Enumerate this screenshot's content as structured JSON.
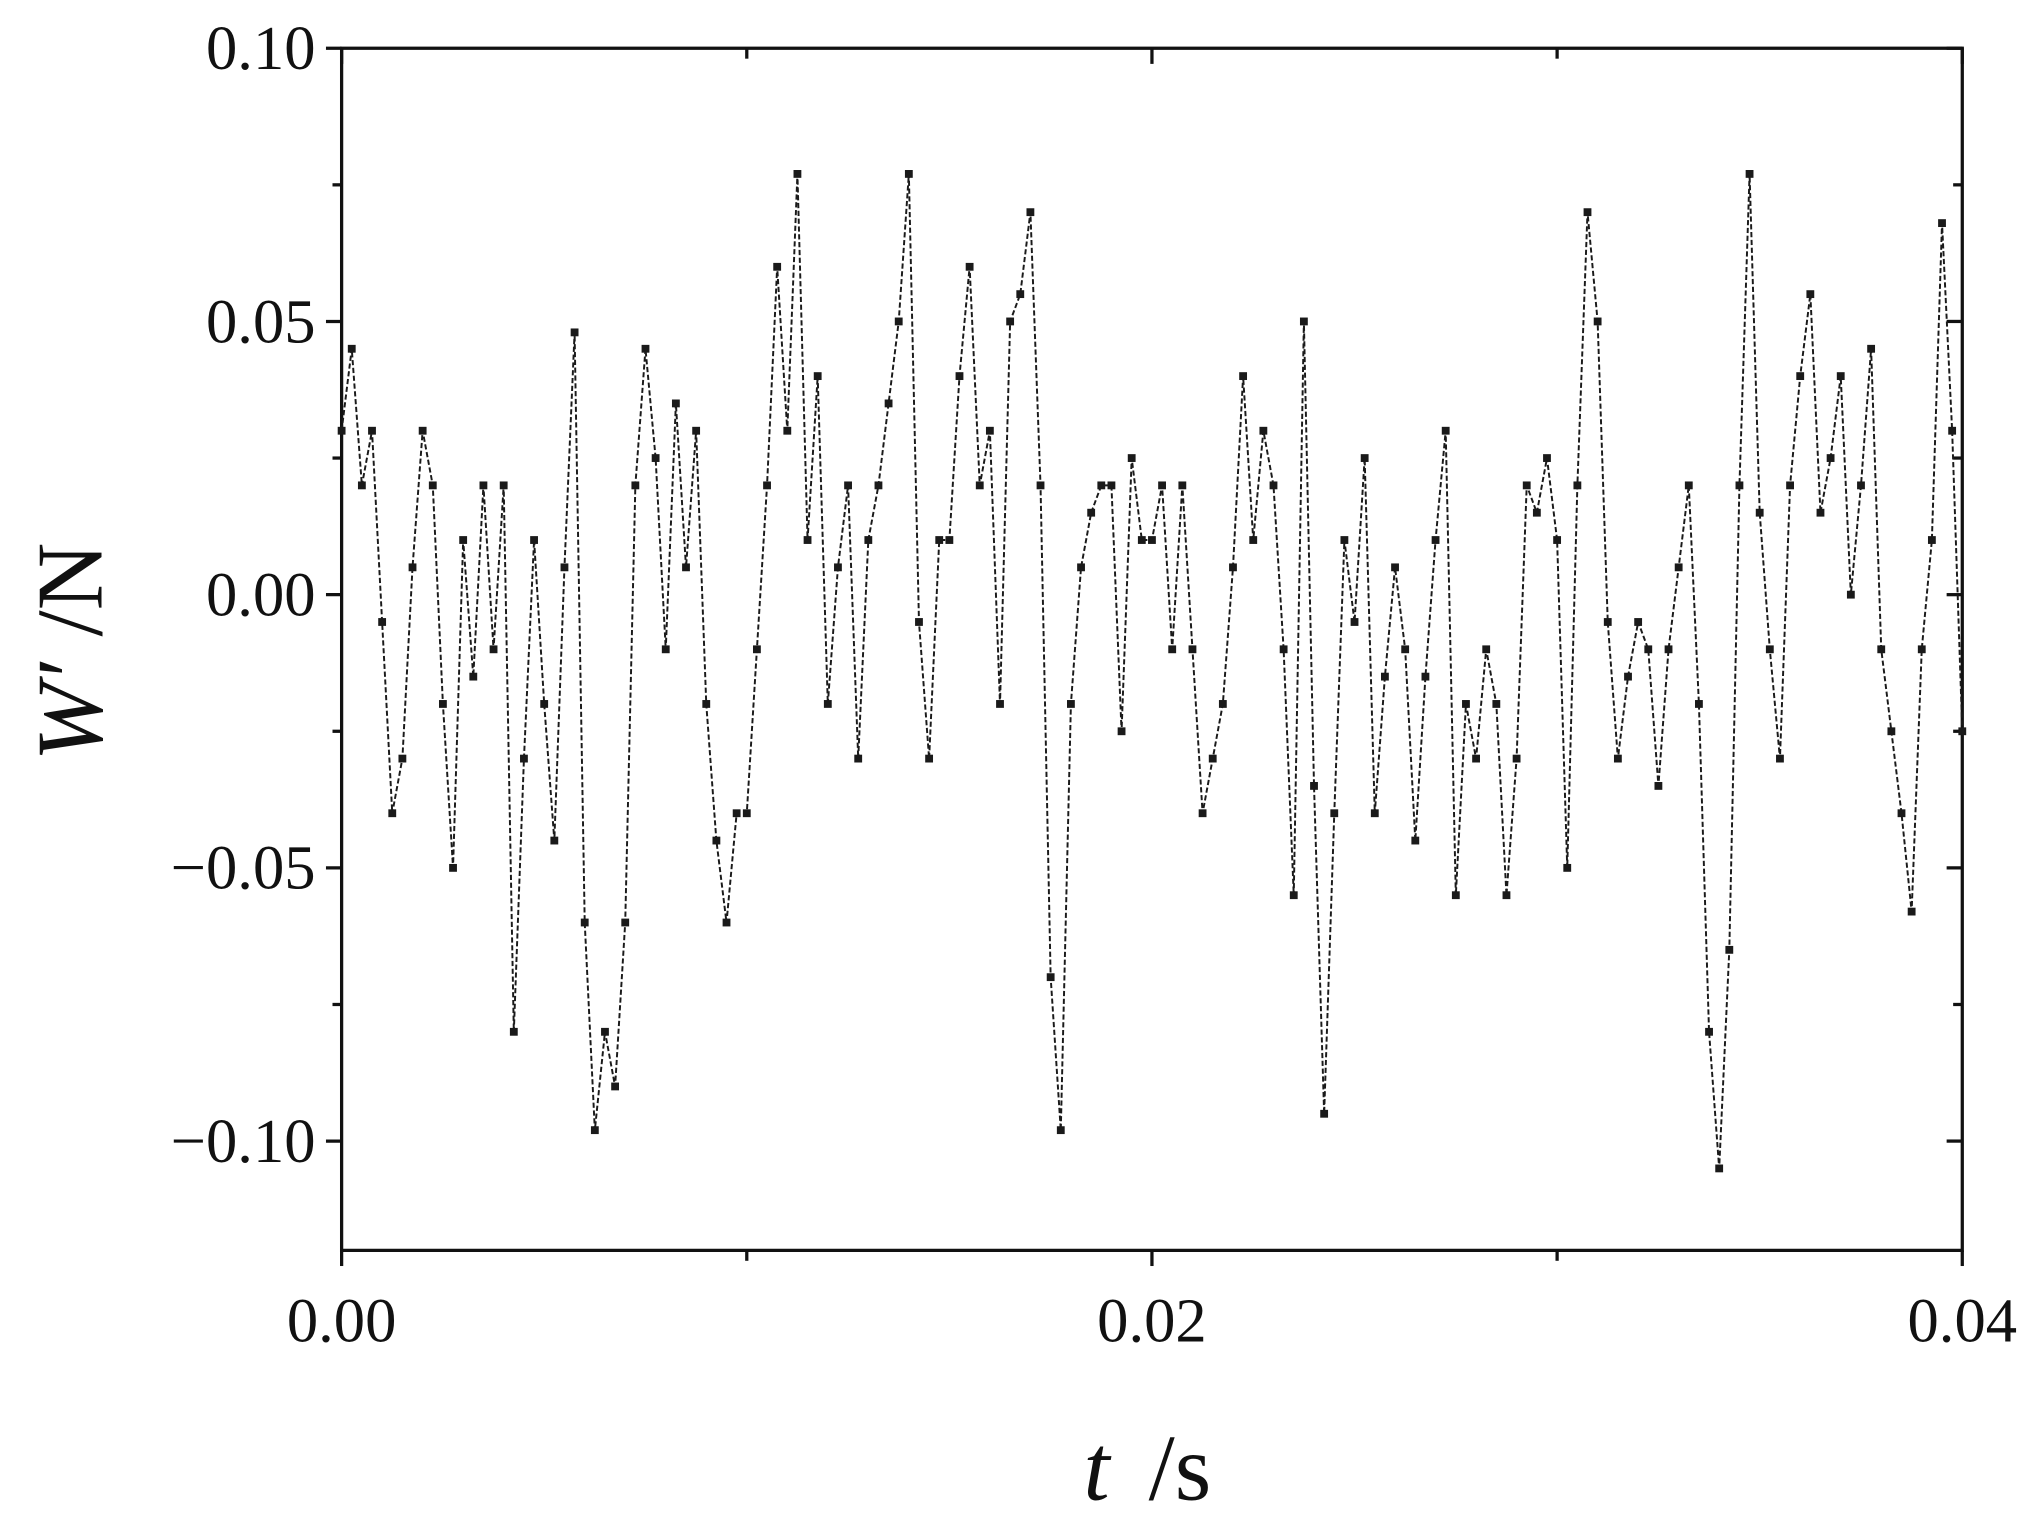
{
  "chart_data": {
    "type": "line",
    "xlabel_symbol": "t",
    "xlabel_unit": "/s",
    "ylabel_symbol": "W′",
    "ylabel_unit": "/N",
    "color": "#1a1a1a",
    "markers": true,
    "xlim": [
      0,
      0.04
    ],
    "xticks": [
      {
        "value": 0,
        "label": "0.00"
      },
      {
        "value": 0.02,
        "label": "0.02"
      },
      {
        "value": 0.04,
        "label": "0.04"
      }
    ],
    "xminor_ticks": [
      0.01,
      0.03
    ],
    "ylim": [
      -0.12,
      0.1
    ],
    "yticks": [
      {
        "value": -0.1,
        "label": "−0.10"
      },
      {
        "value": -0.05,
        "label": "−0.05"
      },
      {
        "value": 0,
        "label": "0.00"
      },
      {
        "value": 0.05,
        "label": "0.05"
      },
      {
        "value": 0.1,
        "label": "0.10"
      }
    ],
    "yminor_ticks": [
      -0.075,
      -0.025,
      0.025,
      0.075
    ],
    "x": [
      0,
      0.00025,
      0.0005,
      0.00075,
      0.001,
      0.00125,
      0.0015,
      0.00175,
      0.002,
      0.00225,
      0.0025,
      0.00275,
      0.003,
      0.00325,
      0.0035,
      0.00375,
      0.004,
      0.00425,
      0.0045,
      0.00475,
      0.005,
      0.00525,
      0.0055,
      0.00575,
      0.006,
      0.00625,
      0.0065,
      0.00675,
      0.007,
      0.00725,
      0.0075,
      0.00775,
      0.008,
      0.00825,
      0.0085,
      0.00875,
      0.009,
      0.00925,
      0.0095,
      0.00975,
      0.01,
      0.01025,
      0.0105,
      0.01075,
      0.011,
      0.01125,
      0.0115,
      0.01175,
      0.012,
      0.01225,
      0.0125,
      0.01275,
      0.013,
      0.01325,
      0.0135,
      0.01375,
      0.014,
      0.01425,
      0.0145,
      0.01475,
      0.015,
      0.01525,
      0.0155,
      0.01575,
      0.016,
      0.01625,
      0.0165,
      0.01675,
      0.017,
      0.01725,
      0.0175,
      0.01775,
      0.018,
      0.01825,
      0.0185,
      0.01875,
      0.019,
      0.01925,
      0.0195,
      0.01975,
      0.02,
      0.02025,
      0.0205,
      0.02075,
      0.021,
      0.02125,
      0.0215,
      0.02175,
      0.022,
      0.02225,
      0.0225,
      0.02275,
      0.023,
      0.02325,
      0.0235,
      0.02375,
      0.024,
      0.02425,
      0.0245,
      0.02475,
      0.025,
      0.02525,
      0.0255,
      0.02575,
      0.026,
      0.02625,
      0.0265,
      0.02675,
      0.027,
      0.02725,
      0.0275,
      0.02775,
      0.028,
      0.02825,
      0.0285,
      0.02875,
      0.029,
      0.02925,
      0.0295,
      0.02975,
      0.03,
      0.03025,
      0.0305,
      0.03075,
      0.031,
      0.03125,
      0.0315,
      0.03175,
      0.032,
      0.03225,
      0.0325,
      0.03275,
      0.033,
      0.03325,
      0.0335,
      0.03375,
      0.034,
      0.03425,
      0.0345,
      0.03475,
      0.035,
      0.03525,
      0.0355,
      0.03575,
      0.036,
      0.03625,
      0.0365,
      0.03675,
      0.037,
      0.03725,
      0.0375,
      0.03775,
      0.038,
      0.03825,
      0.0385,
      0.03875,
      0.039,
      0.03925,
      0.0395,
      0.03975,
      0.04
    ],
    "values": [
      0.03,
      0.045,
      0.02,
      0.03,
      -0.005,
      -0.04,
      -0.03,
      0.005,
      0.03,
      0.02,
      -0.02,
      -0.05,
      0.01,
      -0.015,
      0.02,
      -0.01,
      0.02,
      -0.08,
      -0.03,
      0.01,
      -0.02,
      -0.045,
      0.005,
      0.048,
      -0.06,
      -0.098,
      -0.08,
      -0.09,
      -0.06,
      0.02,
      0.045,
      0.025,
      -0.01,
      0.035,
      0.005,
      0.03,
      -0.02,
      -0.045,
      -0.06,
      -0.04,
      -0.04,
      -0.01,
      0.02,
      0.06,
      0.03,
      0.077,
      0.01,
      0.04,
      -0.02,
      0.005,
      0.02,
      -0.03,
      0.01,
      0.02,
      0.035,
      0.05,
      0.077,
      -0.005,
      -0.03,
      0.01,
      0.01,
      0.04,
      0.06,
      0.02,
      0.03,
      -0.02,
      0.05,
      0.055,
      0.07,
      0.02,
      -0.07,
      -0.098,
      -0.02,
      0.005,
      0.015,
      0.02,
      0.02,
      -0.025,
      0.025,
      0.01,
      0.01,
      0.02,
      -0.01,
      0.02,
      -0.01,
      -0.04,
      -0.03,
      -0.02,
      0.005,
      0.04,
      0.01,
      0.03,
      0.02,
      -0.01,
      -0.055,
      0.05,
      -0.035,
      -0.095,
      -0.04,
      0.01,
      -0.005,
      0.025,
      -0.04,
      -0.015,
      0.005,
      -0.01,
      -0.045,
      -0.015,
      0.01,
      0.03,
      -0.055,
      -0.02,
      -0.03,
      -0.01,
      -0.02,
      -0.055,
      -0.03,
      0.02,
      0.015,
      0.025,
      0.01,
      -0.05,
      0.02,
      0.07,
      0.05,
      -0.005,
      -0.03,
      -0.015,
      -0.005,
      -0.01,
      -0.035,
      -0.01,
      0.005,
      0.02,
      -0.02,
      -0.08,
      -0.105,
      -0.065,
      0.02,
      0.077,
      0.015,
      -0.01,
      -0.03,
      0.02,
      0.04,
      0.055,
      0.015,
      0.025,
      0.04,
      0,
      0.02,
      0.045,
      -0.01,
      -0.025,
      -0.04,
      -0.058,
      -0.01,
      0.01,
      0.068,
      0.03,
      -0.025
    ]
  }
}
